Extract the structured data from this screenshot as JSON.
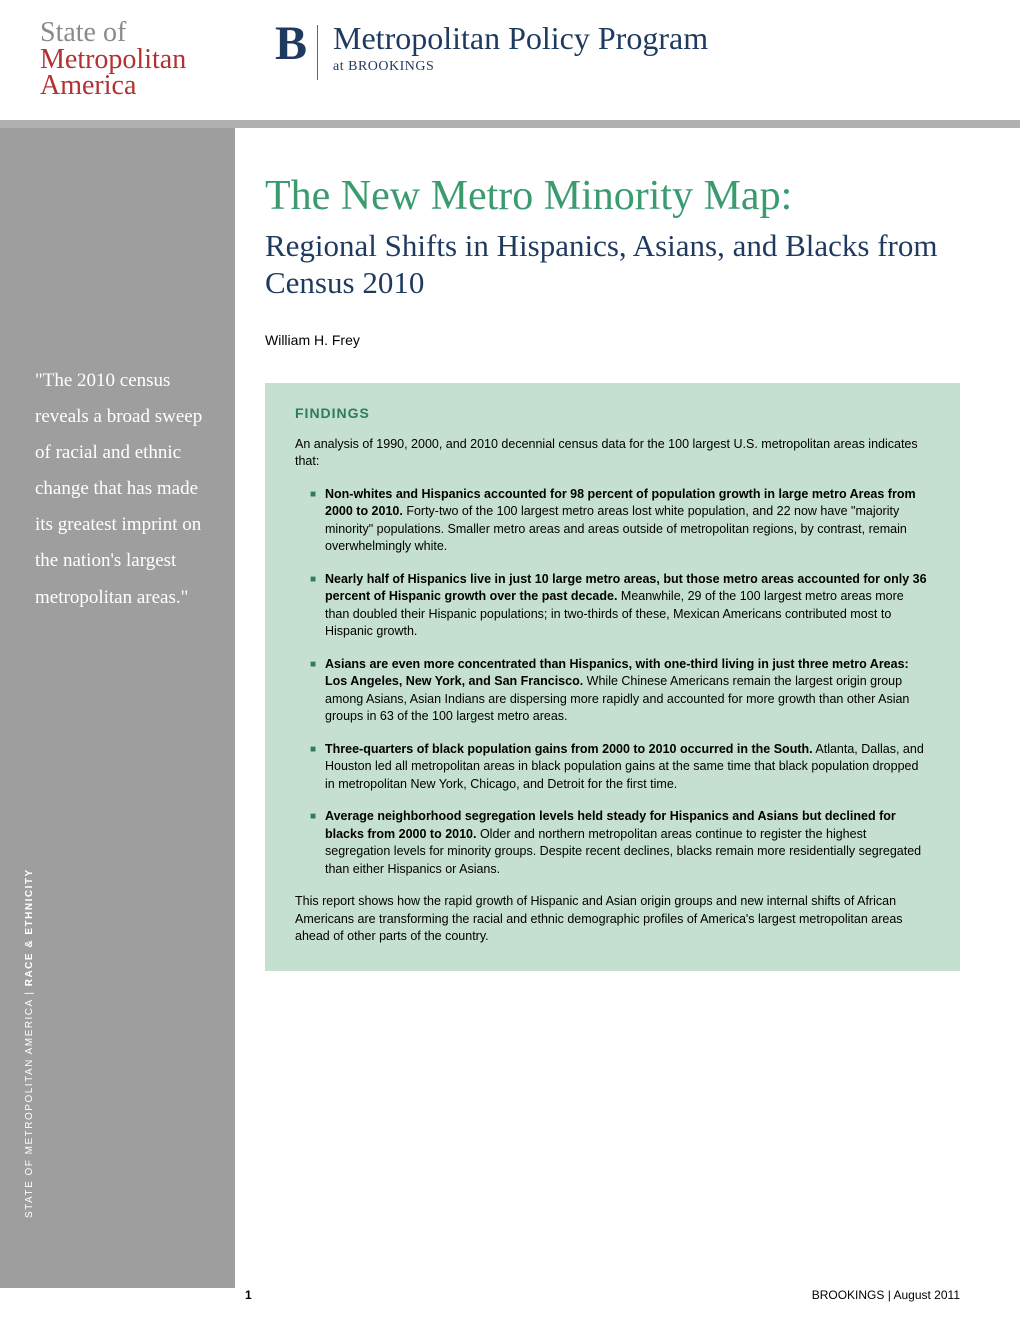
{
  "header": {
    "state_logo": {
      "line1": "State of",
      "line2": "Metropolitan",
      "line3": "America",
      "color_gray": "#8a8a8a",
      "color_red": "#b23232"
    },
    "brookings": {
      "logo_letter": "B",
      "program_main": "Metropolitan Policy Program",
      "program_sub": "at BROOKINGS",
      "color": "#1e3a5f"
    }
  },
  "sidebar": {
    "background": "#9e9e9e",
    "pull_quote": "\"The 2010 census reveals a broad sweep of racial and ethnic change that has made its greatest imprint on the nation's largest metropolitan areas.\"",
    "vertical_label_part1": "STATE OF METROPOLITAN AMERICA | ",
    "vertical_label_part2": "RACE & ETHNICITY"
  },
  "main": {
    "title": "The New Metro Minority Map:",
    "title_color": "#3a9b6f",
    "subtitle": "Regional Shifts in Hispanics, Asians, and Blacks from Census 2010",
    "subtitle_color": "#1e3a5f",
    "author": "William H. Frey"
  },
  "findings": {
    "box_bg": "#c5dfd0",
    "heading": "FINDINGS",
    "heading_color": "#2e7d5a",
    "bullet_color": "#2e7d5a",
    "intro": "An analysis of 1990, 2000, and 2010 decennial census data for the 100 largest U.S. metropolitan areas indicates that:",
    "bullets": [
      {
        "bold": "Non-whites and Hispanics accounted for 98 percent of population growth in large metro Areas from 2000 to 2010.",
        "rest": "  Forty-two of the 100 largest metro areas lost white population, and 22 now have \"majority minority\" populations.  Smaller metro areas and areas outside of metropolitan regions, by contrast, remain overwhelmingly white."
      },
      {
        "bold": "Nearly half of Hispanics live in just 10 large metro areas, but those metro areas accounted for only 36 percent of Hispanic growth over the past decade.",
        "rest": "  Meanwhile, 29 of the 100 largest metro areas more than doubled their Hispanic populations; in two-thirds of these, Mexican Americans contributed most to Hispanic growth."
      },
      {
        "bold": "Asians are even more concentrated than Hispanics, with one-third living in just three metro Areas: Los Angeles, New York, and San Francisco.",
        "rest": "  While Chinese Americans remain the largest origin group among Asians, Asian Indians are dispersing more rapidly and accounted for more growth than other Asian groups in 63 of the 100 largest metro areas."
      },
      {
        "bold": "Three-quarters of black population gains from 2000 to 2010 occurred in the South.",
        "rest": " Atlanta, Dallas, and Houston led all metropolitan areas in black population gains at the same time that black population dropped in metropolitan New York, Chicago, and Detroit for the first time."
      },
      {
        "bold": "Average neighborhood segregation levels held steady for Hispanics and Asians but declined for blacks from 2000 to 2010.",
        "rest": " Older and northern metropolitan areas continue to register the highest segregation levels for minority groups.  Despite recent declines, blacks remain more residentially segregated than either Hispanics or Asians."
      }
    ],
    "conclusion": "This report shows how the rapid growth of Hispanic and Asian origin groups and new internal shifts of African Americans are transforming the racial and ethnic demographic profiles of America's largest metropolitan areas ahead of other parts of the country."
  },
  "footer": {
    "page_number": "1",
    "right_text": "BROOKINGS | August 2011"
  }
}
